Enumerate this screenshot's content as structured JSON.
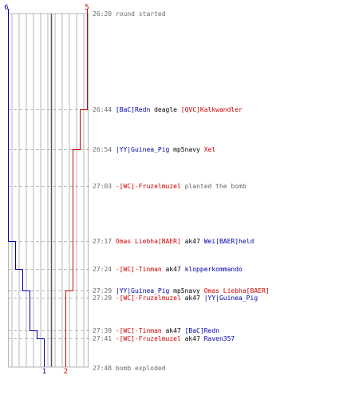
{
  "colors": {
    "blue": "#0000aa",
    "red": "#cc0000",
    "text": "#6a6a6a",
    "weapon": "#000000",
    "grid": "#b5b5b5",
    "center": "#555555",
    "dash": "#b8b8b8"
  },
  "chart_data": {
    "type": "line",
    "x_label": "",
    "y_label": "",
    "blue_series": {
      "start_count": "6",
      "end_count": "1",
      "steps": [
        {
          "time": "26:20",
          "alive": 6
        },
        {
          "time": "27:17",
          "alive": 5
        },
        {
          "time": "27:24",
          "alive": 4
        },
        {
          "time": "27:29",
          "alive": 3
        },
        {
          "time": "27:39",
          "alive": 2
        },
        {
          "time": "27:41",
          "alive": 1
        },
        {
          "time": "27:48",
          "alive": 1
        }
      ]
    },
    "red_series": {
      "start_count": "5",
      "end_count": "2",
      "steps": [
        {
          "time": "26:20",
          "alive": 5
        },
        {
          "time": "26:44",
          "alive": 4
        },
        {
          "time": "26:54",
          "alive": 3
        },
        {
          "time": "27:29",
          "alive": 2
        },
        {
          "time": "27:48",
          "alive": 2
        }
      ]
    }
  },
  "events": [
    {
      "time": "26:20",
      "parts": [
        {
          "t": "round started",
          "c": "text"
        }
      ]
    },
    {
      "time": "26:44",
      "parts": [
        {
          "t": "[BaC]Redn",
          "c": "blue"
        },
        {
          "t": " deagle ",
          "c": "weapon"
        },
        {
          "t": "[QVC]Kalkwandler",
          "c": "red"
        }
      ]
    },
    {
      "time": "26:54",
      "parts": [
        {
          "t": "|YY|Guinea_Pig",
          "c": "blue"
        },
        {
          "t": " mp5navy ",
          "c": "weapon"
        },
        {
          "t": "Xel",
          "c": "red"
        }
      ]
    },
    {
      "time": "27:03",
      "parts": [
        {
          "t": "-[WC]-Fruzelmuzel",
          "c": "red"
        },
        {
          "t": " planted the bomb",
          "c": "text"
        }
      ]
    },
    {
      "time": "27:17",
      "parts": [
        {
          "t": "Omas Liebha[BAER]",
          "c": "red"
        },
        {
          "t": " ak47 ",
          "c": "weapon"
        },
        {
          "t": "Wei[BAER]held",
          "c": "blue"
        }
      ]
    },
    {
      "time": "27:24",
      "parts": [
        {
          "t": "-[WC]-Tinman",
          "c": "red"
        },
        {
          "t": " ak47 ",
          "c": "weapon"
        },
        {
          "t": "klopperkommando",
          "c": "blue"
        }
      ]
    },
    {
      "time": "27:29",
      "parts": [
        {
          "t": "|YY|Guinea_Pig",
          "c": "blue"
        },
        {
          "t": " mp5navy ",
          "c": "weapon"
        },
        {
          "t": "Omas Liebha[BAER]",
          "c": "red"
        }
      ]
    },
    {
      "time": "27:29",
      "parts": [
        {
          "t": "-[WC]-Fruzelmuzel",
          "c": "red"
        },
        {
          "t": " ak47 ",
          "c": "weapon"
        },
        {
          "t": "|YY|Guinea_Pig",
          "c": "blue"
        }
      ]
    },
    {
      "time": "27:39",
      "parts": [
        {
          "t": "-[WC]-Tinman",
          "c": "red"
        },
        {
          "t": " ak47 ",
          "c": "weapon"
        },
        {
          "t": "[BaC]Redn",
          "c": "blue"
        }
      ]
    },
    {
      "time": "27:41",
      "parts": [
        {
          "t": "-[WC]-Fruzelmuzel",
          "c": "red"
        },
        {
          "t": " ak47 ",
          "c": "weapon"
        },
        {
          "t": "Raven357",
          "c": "blue"
        }
      ]
    },
    {
      "time": "27:48",
      "parts": [
        {
          "t": "bomb exploded",
          "c": "text"
        }
      ]
    }
  ]
}
